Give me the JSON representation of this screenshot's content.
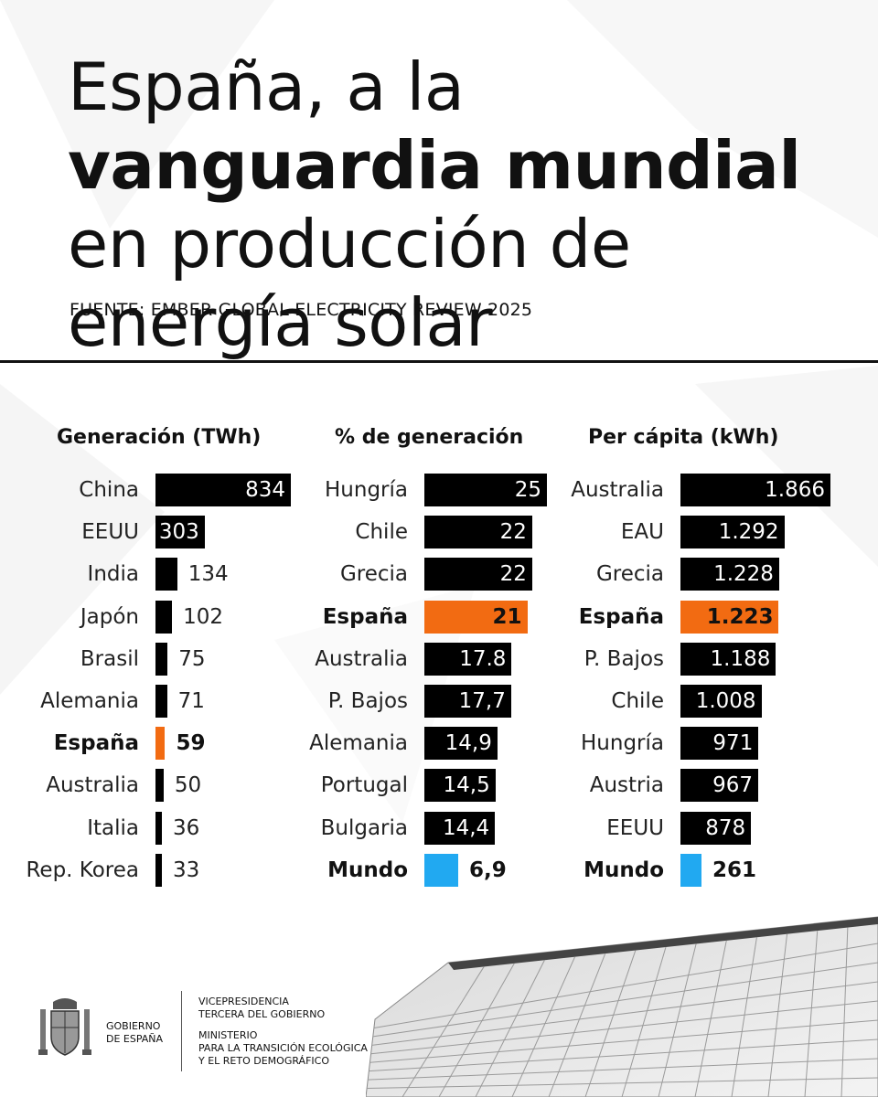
{
  "header": {
    "title_part1": "España, a la ",
    "title_bold1": "vanguardia mundial",
    "title_part2": " en producción de energía solar",
    "source": "FUENTE: EMBER GLOBAL ELECTRICITY REVIEW 2025"
  },
  "colors": {
    "bar": "#000000",
    "highlight": "#f26b12",
    "world": "#21a9f1"
  },
  "chart_data": [
    {
      "type": "bar",
      "title": "Generación (TWh)",
      "categories": [
        "China",
        "EEUU",
        "India",
        "Japón",
        "Brasil",
        "Alemania",
        "España",
        "Australia",
        "Italia",
        "Rep. Korea"
      ],
      "values": [
        834,
        303,
        134,
        102,
        75,
        71,
        59,
        50,
        36,
        33
      ],
      "value_labels": [
        "834",
        "303",
        "134",
        "102",
        "75",
        "71",
        "59",
        "50",
        "36",
        "33"
      ],
      "highlight": [
        "España"
      ],
      "world": []
    },
    {
      "type": "bar",
      "title": "% de generación",
      "categories": [
        "Hungría",
        "Chile",
        "Grecia",
        "España",
        "Australia",
        "P. Bajos",
        "Alemania",
        "Portugal",
        "Bulgaria",
        "Mundo"
      ],
      "values": [
        25,
        22,
        22,
        21,
        17.8,
        17.7,
        14.9,
        14.5,
        14.4,
        6.9
      ],
      "value_labels": [
        "25",
        "22",
        "22",
        "21",
        "17.8",
        "17,7",
        "14,9",
        "14,5",
        "14,4",
        "6,9"
      ],
      "highlight": [
        "España"
      ],
      "world": [
        "Mundo"
      ]
    },
    {
      "type": "bar",
      "title": "Per cápita (kWh)",
      "categories": [
        "Australia",
        "EAU",
        "Grecia",
        "España",
        "P. Bajos",
        "Chile",
        "Hungría",
        "Austria",
        "EEUU",
        "Mundo"
      ],
      "values": [
        1866,
        1292,
        1228,
        1223,
        1188,
        1008,
        971,
        967,
        878,
        261
      ],
      "value_labels": [
        "1.866",
        "1.292",
        "1.228",
        "1.223",
        "1.188",
        "1.008",
        "971",
        "967",
        "878",
        "261"
      ],
      "highlight": [
        "España"
      ],
      "world": [
        "Mundo"
      ]
    }
  ],
  "footer": {
    "gov_line1": "GOBIERNO",
    "gov_line2": "DE ESPAÑA",
    "vice_line1": "VICEPRESIDENCIA",
    "vice_line2": "TERCERA DEL GOBIERNO",
    "min_line1": "MINISTERIO",
    "min_line2": "PARA LA TRANSICIÓN ECOLÓGICA",
    "min_line3": "Y EL RETO DEMOGRÁFICO"
  },
  "icons": {
    "coat": "coat-of-arms-icon",
    "panel": "solar-panel-icon"
  }
}
